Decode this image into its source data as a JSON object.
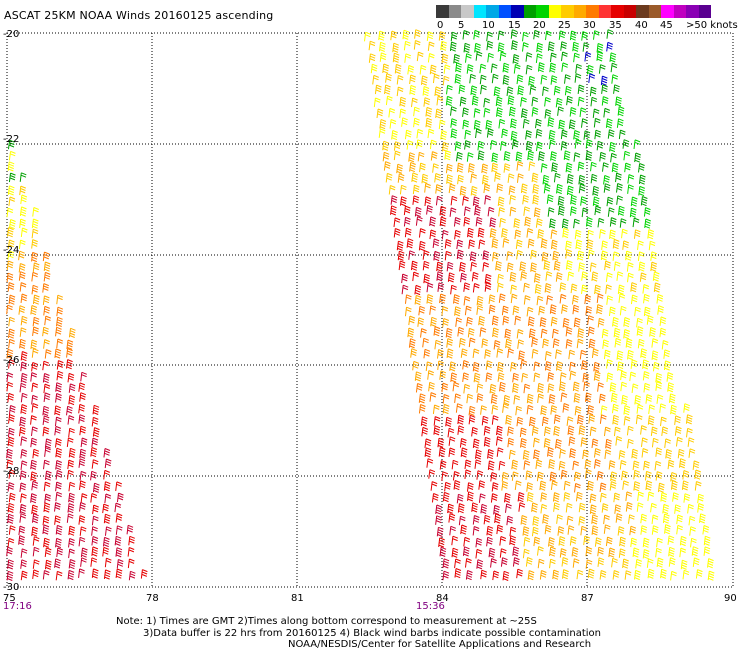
{
  "title": "ASCAT 25KM NOAA Winds 20160125 ascending",
  "colorbar": {
    "colors": [
      "#3a3a3a",
      "#8a8a8a",
      "#c8c8c8",
      "#00e5ff",
      "#00a8e6",
      "#0050ff",
      "#0000b4",
      "#00a000",
      "#00d400",
      "#ffff00",
      "#ffcc00",
      "#ffaa00",
      "#ff7a00",
      "#ff3333",
      "#e60000",
      "#c80000",
      "#6b3a1e",
      "#9a5a2a",
      "#ff00ff",
      "#c000c0",
      "#8a00b4",
      "#5a0090"
    ],
    "labels": [
      "0",
      "5",
      "10",
      "15",
      "20",
      "25",
      "30",
      "35",
      "40",
      "45",
      ">50 knots"
    ]
  },
  "axes": {
    "y_labels": [
      "-20",
      "-22",
      "-24",
      "-26",
      "-28",
      "-30"
    ],
    "x_labels": [
      "75",
      "78",
      "81",
      "84",
      "87",
      "90"
    ]
  },
  "times": [
    "17:16",
    "15:36"
  ],
  "notes": {
    "line1": "Note: 1) Times are GMT 2)Times along bottom correspond to measurement at ~25S",
    "line2": "3)Data buffer is 22 hrs from 20160125 4) Black wind barbs indicate possible contamination",
    "line3": "NOAA/NESDIS/Center for Satellite Applications and Research"
  },
  "wind_colors": {
    "green": "#00a000",
    "light_green": "#00d400",
    "blue": "#0000cc",
    "yellow": "#ffff00",
    "gold": "#ffcc00",
    "orange": "#ffaa00",
    "dark_orange": "#ff7a00",
    "red": "#e60000",
    "crimson": "#c80030"
  }
}
